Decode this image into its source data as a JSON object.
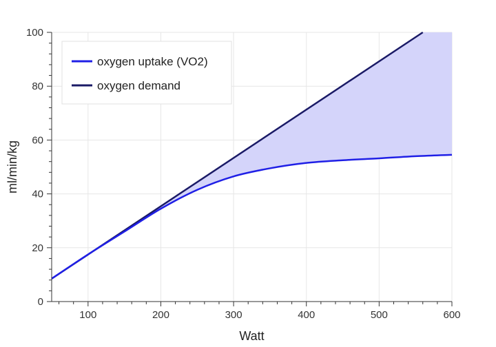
{
  "chart_data": {
    "type": "area",
    "xlabel": "Watt",
    "ylabel": "ml/min/kg",
    "xlim": [
      50,
      600
    ],
    "ylim": [
      0,
      100
    ],
    "x_ticks": [
      100,
      200,
      300,
      400,
      500,
      600
    ],
    "y_ticks": [
      0,
      20,
      40,
      60,
      80,
      100
    ],
    "grid": true,
    "legend_position": "top-left",
    "series": [
      {
        "name": "oxygen uptake (VO2)",
        "color": "#1f1fe6",
        "x": [
          50,
          100,
          150,
          200,
          250,
          300,
          350,
          400,
          450,
          500,
          550,
          600
        ],
        "y": [
          8.5,
          17.5,
          26,
          34.5,
          41.5,
          46.5,
          49.5,
          51.5,
          52.5,
          53.2,
          54,
          54.5
        ]
      },
      {
        "name": "oxygen demand",
        "color": "#1a1a66",
        "x": [
          50,
          560
        ],
        "y": [
          8.5,
          100
        ]
      }
    ],
    "fill_between": {
      "between": [
        "oxygen demand",
        "oxygen uptake (VO2)"
      ],
      "color": "#d4d4fa"
    }
  }
}
